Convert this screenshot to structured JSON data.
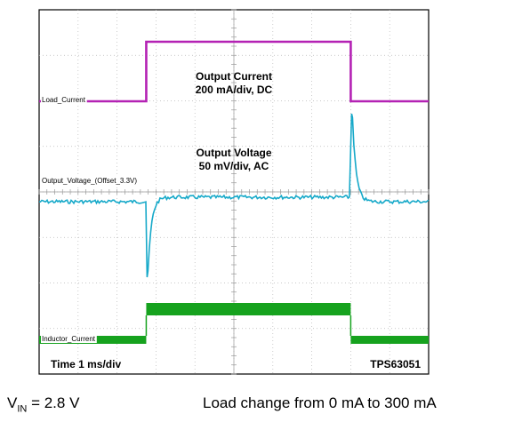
{
  "chart_data": {
    "type": "line",
    "product": "TPS63051",
    "time_scale_label": "Time 1 ms/div",
    "time_unit": "ms",
    "x_range": [
      0,
      10
    ],
    "divisions": {
      "horizontal": 10,
      "vertical": 8
    },
    "grid": true,
    "load_step": {
      "rise_time_ms": 2.75,
      "fall_time_ms": 8.0
    },
    "channels": [
      {
        "label": "Load_Current",
        "color": "#b422b4",
        "scale_label": "200 mA/div, DC"
      },
      {
        "label": "Output_Voltage_(Offset_3.3V)",
        "color": "#17a9c9",
        "scale_label": "50 mV/div, AC"
      },
      {
        "label": "Inductor_Current",
        "color": "#16a21e"
      }
    ],
    "annotations": [
      {
        "title": "Output Current",
        "detail": "200 mA/div, DC"
      },
      {
        "title": "Output Voltage",
        "detail": "50 mV/div, AC"
      }
    ]
  },
  "captions": {
    "vin_prefix": "V",
    "vin_subscript": "IN",
    "vin_value": " = 2.8 V",
    "load_change": "Load change from 0 mA to 300 mA"
  }
}
